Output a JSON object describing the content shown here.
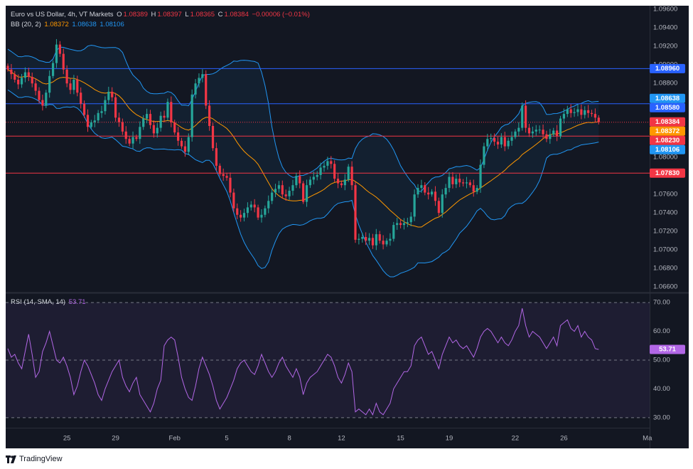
{
  "legend": {
    "symbol": "Euro vs US Dollar, 4h, VT Markets",
    "o_label": "O",
    "o_value": "1.08389",
    "h_label": "H",
    "h_value": "1.08397",
    "l_label": "L",
    "l_value": "1.08365",
    "c_label": "C",
    "c_value": "1.08384",
    "change": "−0.00006 (−0.01%)",
    "bb_label": "BB (20, 2)",
    "bb_basis": "1.08372",
    "bb_upper": "1.08638",
    "bb_lower": "1.08106",
    "rsi_label": "RSI (14, SMA, 14)",
    "rsi_value": "53.71"
  },
  "footer": {
    "brand": "TradingView"
  },
  "colors": {
    "background": "#131722",
    "up": "#26a69a",
    "down": "#f23645",
    "bb_basis": "#ff9800",
    "bb_band": "#2196f3",
    "rsi": "#b267e6",
    "hline_blue": "#2962ff",
    "hline_red": "#f23645"
  },
  "chart_data": [
    {
      "type": "candlestick",
      "title": "Euro vs US Dollar, 4h, VT Markets",
      "price_axis_ticks": [
        "1.09600",
        "1.09400",
        "1.09200",
        "1.09000",
        "1.08800",
        "1.08600",
        "1.08400",
        "1.08200",
        "1.08000",
        "1.07800",
        "1.07600",
        "1.07400",
        "1.07200",
        "1.07000",
        "1.06800",
        "1.06600"
      ],
      "ylim": [
        1.0654,
        1.0964
      ],
      "time_axis_ticks": [
        "25",
        "29",
        "Feb",
        "5",
        "8",
        "12",
        "15",
        "19",
        "22",
        "26",
        "Ma"
      ],
      "horizontal_lines": [
        {
          "value": 1.0896,
          "label": "1.08960",
          "color": "#2962ff"
        },
        {
          "value": 1.0858,
          "label": "1.08580",
          "color": "#2962ff"
        },
        {
          "value": 1.0823,
          "label": "1.08230",
          "color": "#f23645"
        },
        {
          "value": 1.0783,
          "label": "1.07830",
          "color": "#f23645"
        }
      ],
      "price_labels": [
        {
          "value": 1.08638,
          "label": "1.08638",
          "color": "#2196f3"
        },
        {
          "value": 1.0858,
          "label": "1.08580",
          "color": "#2962ff"
        },
        {
          "value": 1.08384,
          "label": "1.08384",
          "color": "#f23645"
        },
        {
          "value": 1.08372,
          "label": "1.08372",
          "color": "#ff9800"
        },
        {
          "value": 1.0823,
          "label": "1.08230",
          "color": "#f23645"
        },
        {
          "value": 1.08106,
          "label": "1.08106",
          "color": "#2196f3"
        },
        {
          "value": 1.0783,
          "label": "1.07830",
          "color": "#f23645"
        }
      ],
      "closes": [
        1.0895,
        1.089,
        1.0884,
        1.0879,
        1.0886,
        1.0892,
        1.0887,
        1.088,
        1.0872,
        1.0862,
        1.0856,
        1.087,
        1.0888,
        1.0902,
        1.0922,
        1.0912,
        1.0895,
        1.088,
        1.0873,
        1.0884,
        1.087,
        1.0858,
        1.0846,
        1.0833,
        1.0838,
        1.084,
        1.0848,
        1.085,
        1.0862,
        1.0871,
        1.0865,
        1.0843,
        1.0838,
        1.0828,
        1.082,
        1.0815,
        1.0822,
        1.082,
        1.0833,
        1.0842,
        1.0847,
        1.0835,
        1.0826,
        1.0832,
        1.0845,
        1.0843,
        1.086,
        1.0838,
        1.0827,
        1.0818,
        1.0812,
        1.0806,
        1.0822,
        1.0868,
        1.088,
        1.0886,
        1.089,
        1.0856,
        1.0834,
        1.081,
        1.0791,
        1.0782,
        1.078,
        1.0778,
        1.0762,
        1.0745,
        1.0738,
        1.0735,
        1.074,
        1.0746,
        1.0749,
        1.0746,
        1.0735,
        1.0738,
        1.0745,
        1.0753,
        1.0762,
        1.0766,
        1.077,
        1.076,
        1.0758,
        1.0764,
        1.077,
        1.078,
        1.0772,
        1.0752,
        1.077,
        1.0776,
        1.0779,
        1.0781,
        1.0789,
        1.0791,
        1.0796,
        1.0793,
        1.0777,
        1.0772,
        1.077,
        1.0776,
        1.079,
        1.077,
        1.0711,
        1.0712,
        1.0714,
        1.071,
        1.0713,
        1.0705,
        1.0717,
        1.071,
        1.0706,
        1.071,
        1.0712,
        1.0727,
        1.0729,
        1.0727,
        1.0729,
        1.073,
        1.0736,
        1.076,
        1.0767,
        1.077,
        1.0762,
        1.076,
        1.0763,
        1.0753,
        1.074,
        1.076,
        1.0767,
        1.0779,
        1.0771,
        1.0777,
        1.0773,
        1.0772,
        1.0773,
        1.077,
        1.0763,
        1.0767,
        1.0792,
        1.0812,
        1.082,
        1.0821,
        1.0817,
        1.0814,
        1.0822,
        1.0812,
        1.0818,
        1.0822,
        1.0828,
        1.0832,
        1.0856,
        1.0832,
        1.0826,
        1.0828,
        1.083,
        1.083,
        1.0825,
        1.082,
        1.0825,
        1.0829,
        1.0823,
        1.0842,
        1.0847,
        1.0852,
        1.0848,
        1.0849,
        1.0852,
        1.0846,
        1.0851,
        1.0848,
        1.0847,
        1.0843,
        1.0838
      ],
      "bb_period": 20,
      "bb_mult": 2
    },
    {
      "type": "line",
      "title": "RSI (14, SMA, 14)",
      "axis_ticks": [
        "70.00",
        "60.00",
        "50.00",
        "40.00",
        "30.00"
      ],
      "ylim": [
        26.5,
        73
      ],
      "reference_levels": [
        70,
        50,
        30
      ],
      "last_value": 53.71,
      "rsi": [
        54,
        51,
        52,
        49,
        47,
        53,
        59,
        52,
        44,
        46,
        53,
        56,
        60,
        55,
        50,
        49,
        51,
        48,
        44,
        38,
        41,
        46,
        50,
        48,
        45,
        42,
        38,
        36,
        40,
        43,
        46,
        48,
        50,
        44,
        41,
        39,
        42,
        44,
        38,
        36,
        34,
        32,
        35,
        40,
        43,
        55,
        57,
        58,
        57,
        51,
        44,
        40,
        37,
        36,
        41,
        47,
        51,
        48,
        45,
        41,
        36,
        33,
        35,
        37,
        40,
        43,
        47,
        49,
        50,
        48,
        46,
        45,
        48,
        52,
        49,
        46,
        44,
        46,
        49,
        51,
        48,
        46,
        44,
        47,
        44,
        38,
        42,
        44,
        45,
        46,
        48,
        50,
        52,
        51,
        48,
        44,
        42,
        45,
        49,
        46,
        32,
        33,
        32,
        31,
        33,
        31,
        35,
        32,
        31,
        33,
        35,
        40,
        42,
        44,
        46,
        46,
        48,
        55,
        57,
        58,
        55,
        52,
        53,
        50,
        47,
        52,
        55,
        58,
        56,
        57,
        55,
        54,
        55,
        53,
        51,
        54,
        58,
        60,
        61,
        60,
        58,
        56,
        58,
        56,
        55,
        57,
        60,
        62,
        68,
        62,
        58,
        60,
        59,
        58,
        56,
        54,
        56,
        58,
        55,
        62,
        63,
        64,
        61,
        60,
        62,
        58,
        60,
        58,
        57,
        54,
        53.71
      ]
    }
  ]
}
